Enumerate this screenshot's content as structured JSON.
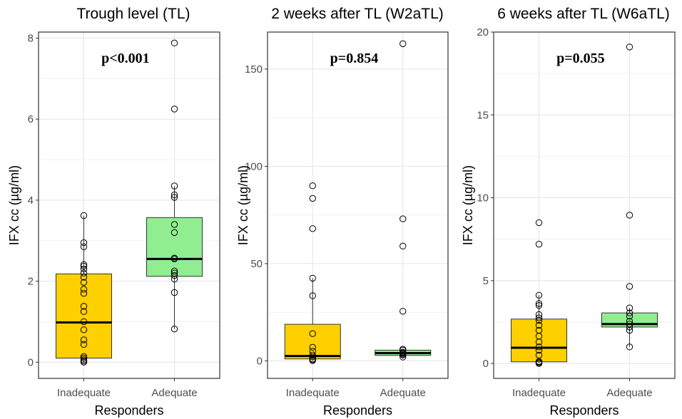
{
  "chart_data": [
    {
      "type": "box",
      "title": "Trough level (TL)",
      "annotation": "p<0.001",
      "xlabel": "Responders",
      "ylabel": "IFX cc (µg/ml)",
      "categories": [
        "Inadequate",
        "Adequate"
      ],
      "ylim": [
        -0.4,
        8.15
      ],
      "yticks": [
        0,
        2,
        4,
        6,
        8
      ],
      "grid": true,
      "boxes": [
        {
          "category": "Inadequate",
          "color": "#ffd000",
          "min": 0.0,
          "q1": 0.1,
          "median": 0.98,
          "q3": 2.18,
          "max": 3.62,
          "points": [
            0.0,
            0.03,
            0.06,
            0.1,
            0.14,
            0.44,
            0.55,
            0.8,
            1.0,
            1.25,
            1.38,
            1.7,
            1.8,
            1.97,
            2.1,
            2.2,
            2.3,
            2.37,
            2.41,
            2.85,
            2.95,
            3.62
          ]
        },
        {
          "category": "Adequate",
          "color": "#90ee90",
          "min": 0.82,
          "q1": 2.12,
          "median": 2.55,
          "q3": 3.57,
          "max": 4.35,
          "points": [
            0.82,
            1.72,
            2.05,
            2.14,
            2.2,
            2.25,
            2.55,
            2.57,
            3.2,
            3.4,
            4.07,
            4.13,
            4.35,
            6.25,
            7.88
          ]
        }
      ]
    },
    {
      "type": "box",
      "title": "2 weeks after TL (W2aTL)",
      "annotation": "p=0.854",
      "xlabel": "Responders",
      "ylabel": "IFX cc (µg/ml)",
      "categories": [
        "Inadequate",
        "Adequate"
      ],
      "ylim": [
        -9,
        169
      ],
      "yticks": [
        0,
        50,
        100,
        150
      ],
      "grid": true,
      "boxes": [
        {
          "category": "Inadequate",
          "color": "#ffd000",
          "min": 0.2,
          "q1": 1.0,
          "median": 2.5,
          "q3": 18.8,
          "max": 42.5,
          "points": [
            0.2,
            0.6,
            1.0,
            2.0,
            3.0,
            5.0,
            7.0,
            14.0,
            33.5,
            42.5,
            68.0,
            83.5,
            90.0
          ]
        },
        {
          "category": "Adequate",
          "color": "#90ee90",
          "min": 2.0,
          "q1": 2.8,
          "median": 4.0,
          "q3": 5.5,
          "max": 6.0,
          "points": [
            2.0,
            3.0,
            3.5,
            4.0,
            4.5,
            5.5,
            6.0,
            25.5,
            59.0,
            73.0,
            163.0
          ]
        }
      ]
    },
    {
      "type": "box",
      "title": "6 weeks after TL (W6aTL)",
      "annotation": "p=0.055",
      "xlabel": "Responders",
      "ylabel": "IFX cc (µg/ml)",
      "categories": [
        "Inadequate",
        "Adequate"
      ],
      "ylim": [
        -0.9,
        20.0
      ],
      "yticks": [
        0,
        5,
        10,
        15,
        20
      ],
      "grid": true,
      "boxes": [
        {
          "category": "Inadequate",
          "color": "#ffd000",
          "min": 0.0,
          "q1": 0.1,
          "median": 0.95,
          "q3": 2.68,
          "max": 4.12,
          "points": [
            0.0,
            0.05,
            0.1,
            0.12,
            0.5,
            0.8,
            1.0,
            1.3,
            1.65,
            2.0,
            2.3,
            2.6,
            2.75,
            2.95,
            3.5,
            3.62,
            4.12,
            7.2,
            8.5
          ]
        },
        {
          "category": "Adequate",
          "color": "#90ee90",
          "min": 1.0,
          "q1": 2.2,
          "median": 2.38,
          "q3": 3.05,
          "max": 3.35,
          "points": [
            1.0,
            2.0,
            2.2,
            2.38,
            2.55,
            2.85,
            3.05,
            3.35,
            4.65,
            8.95,
            19.1
          ]
        }
      ]
    }
  ]
}
